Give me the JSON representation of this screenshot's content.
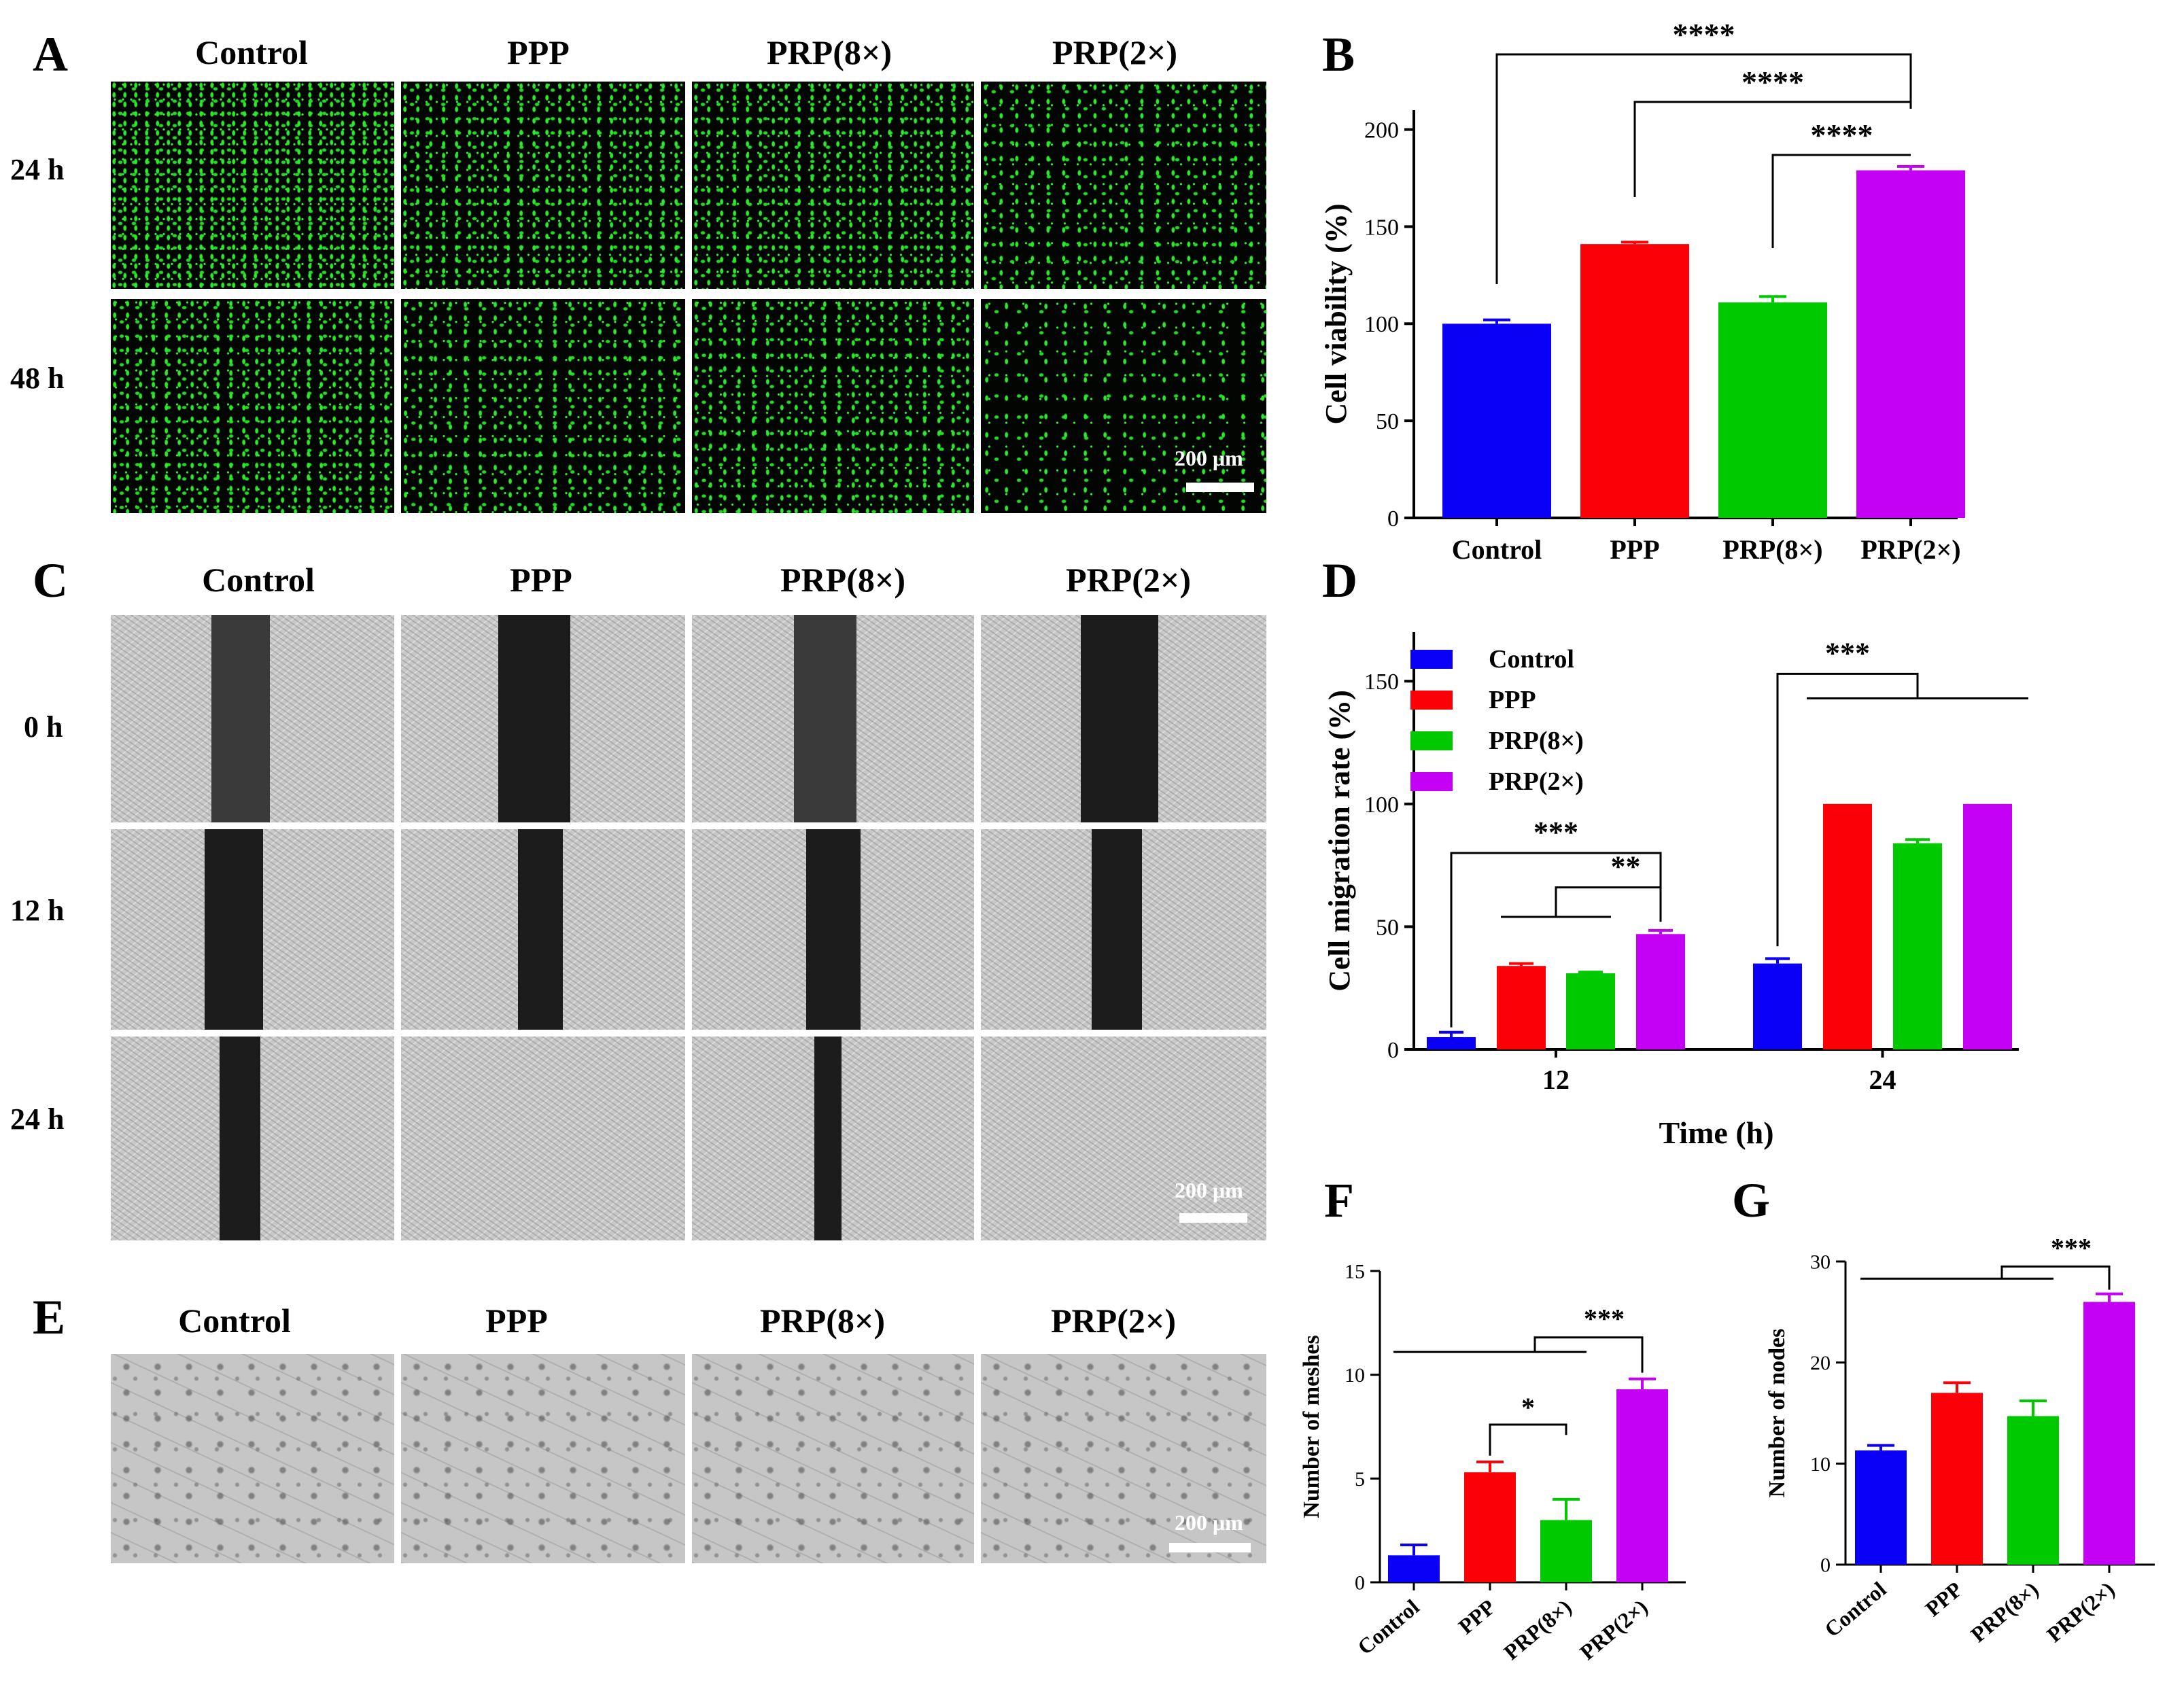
{
  "figure": {
    "panel_labels": {
      "A": "A",
      "B": "B",
      "C": "C",
      "D": "D",
      "E": "E",
      "F": "F",
      "G": "G"
    },
    "groups": [
      "Control",
      "PPP",
      "PRP(8×)",
      "PRP(2×)"
    ],
    "colors": {
      "Control": "#0a00f5",
      "PPP": "#fb0007",
      "PRP(8×)": "#00c900",
      "PRP(2×)": "#c400f5"
    },
    "panelA": {
      "rows": [
        "24 h",
        "48 h"
      ],
      "scale": "200 μm"
    },
    "panelC": {
      "rows": [
        "0 h",
        "12 h",
        "24 h"
      ],
      "scale": "200 μm"
    },
    "panelE": {
      "scale": "200 μm"
    }
  },
  "chart_data": [
    {
      "id": "B",
      "type": "bar",
      "categories": [
        "Control",
        "PPP",
        "PRP(8×)",
        "PRP(2×)"
      ],
      "values": [
        100,
        141,
        111,
        179
      ],
      "errors": [
        2,
        1,
        3,
        2
      ],
      "ylabel": "Cell viability (%)",
      "ylim": [
        0,
        210
      ],
      "yticks": [
        0,
        50,
        100,
        150,
        200
      ],
      "significance": [
        "****",
        "****",
        "****"
      ]
    },
    {
      "id": "D",
      "type": "bar",
      "xlabel": "Time (h)",
      "ylabel": "Cell migration rate (%)",
      "categories": [
        "12",
        "24"
      ],
      "series": [
        {
          "name": "Control",
          "values": [
            5,
            35
          ],
          "errors": [
            2,
            2
          ]
        },
        {
          "name": "PPP",
          "values": [
            34,
            100
          ],
          "errors": [
            1,
            0
          ]
        },
        {
          "name": "PRP(8×)",
          "values": [
            31,
            84
          ],
          "errors": [
            0.5,
            1.5
          ]
        },
        {
          "name": "PRP(2×)",
          "values": [
            47,
            100
          ],
          "errors": [
            1.5,
            0
          ]
        }
      ],
      "ylim": [
        0,
        170
      ],
      "yticks": [
        0,
        50,
        100,
        150
      ],
      "legend": "top-left",
      "significance": [
        "***",
        "**",
        "***"
      ]
    },
    {
      "id": "F",
      "type": "bar",
      "categories": [
        "Control",
        "PPP",
        "PRP(8×)",
        "PRP(2×)"
      ],
      "values": [
        1.3,
        5.3,
        3.0,
        9.3
      ],
      "errors": [
        0.5,
        0.5,
        1.0,
        0.5
      ],
      "ylabel": "Number of meshes",
      "ylim": [
        0,
        15
      ],
      "yticks": [
        0,
        5,
        10,
        15
      ],
      "significance": [
        "*",
        "***"
      ]
    },
    {
      "id": "G",
      "type": "bar",
      "categories": [
        "Control",
        "PPP",
        "PRP(8×)",
        "PRP(2×)"
      ],
      "values": [
        11.3,
        17.0,
        14.7,
        26.0
      ],
      "errors": [
        0.5,
        1.0,
        1.5,
        0.8
      ],
      "ylabel": "Number of nodes",
      "ylim": [
        0,
        30
      ],
      "yticks": [
        0,
        10,
        20,
        30
      ],
      "significance": [
        "***"
      ]
    }
  ]
}
